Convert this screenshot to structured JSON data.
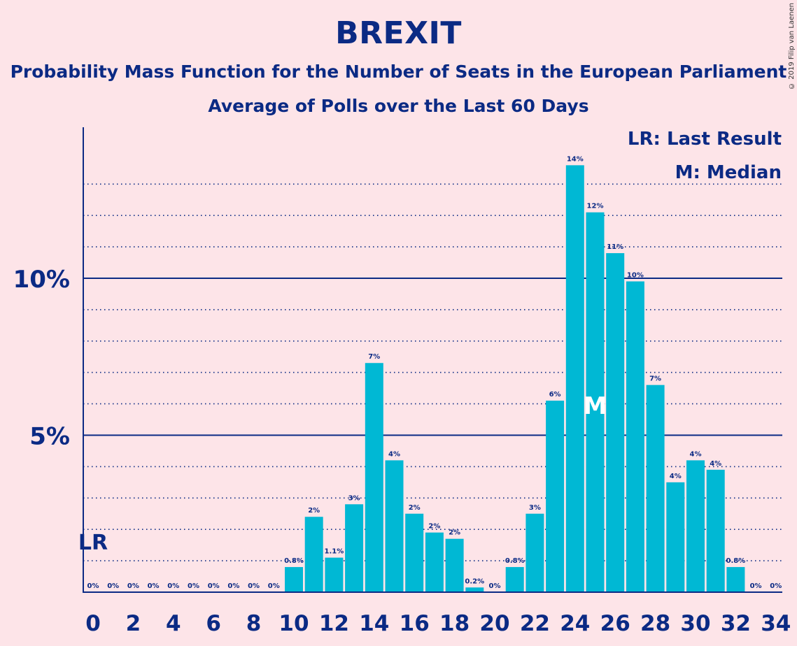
{
  "title": "BREXIT",
  "subtitle": "Probability Mass Function for the Number of Seats in the European Parliament",
  "subtitle2": "Average of Polls over the Last 60 Days",
  "copyright": "© 2019 Filip van Laenen",
  "legend": {
    "last_result": "LR: Last Result",
    "median": "M: Median"
  },
  "colors": {
    "background": "#fde4e8",
    "bar": "#00b8d4",
    "text": "#0b2a84"
  },
  "chart_data": {
    "type": "bar",
    "x": [
      0,
      1,
      2,
      3,
      4,
      5,
      6,
      7,
      8,
      9,
      10,
      11,
      12,
      13,
      14,
      15,
      16,
      17,
      18,
      19,
      20,
      21,
      22,
      23,
      24,
      25,
      26,
      27,
      28,
      29,
      30,
      31,
      32,
      33,
      34
    ],
    "values": [
      0,
      0,
      0,
      0,
      0,
      0,
      0,
      0,
      0,
      0,
      0.8,
      2.4,
      1.1,
      2.8,
      7.3,
      4.2,
      2.5,
      1.9,
      1.7,
      0.15,
      0,
      0.8,
      2.5,
      6.1,
      13.6,
      12.1,
      10.8,
      9.9,
      6.6,
      3.5,
      4.2,
      3.9,
      0.8,
      0,
      0
    ],
    "labels": [
      "0%",
      "0%",
      "0%",
      "0%",
      "0%",
      "0%",
      "0%",
      "0%",
      "0%",
      "0%",
      "0.8%",
      "2%",
      "1.1%",
      "3%",
      "7%",
      "4%",
      "2%",
      "2%",
      "2%",
      "0.2%",
      "0%",
      "0.8%",
      "3%",
      "6%",
      "14%",
      "12%",
      "11%",
      "10%",
      "7%",
      "4%",
      "4%",
      "4%",
      "0.8%",
      "0%",
      "0%"
    ],
    "x_tick_labels": [
      "0",
      "2",
      "4",
      "6",
      "8",
      "10",
      "12",
      "14",
      "16",
      "18",
      "20",
      "22",
      "24",
      "26",
      "28",
      "30",
      "32",
      "34"
    ],
    "y_tick_labels": [
      "5%",
      "10%"
    ],
    "y_ticks": [
      5,
      10
    ],
    "ylim": [
      0,
      14.8
    ],
    "grid": true,
    "last_result_seat": 0,
    "last_result_marker": "LR",
    "median_seat": 25,
    "median_marker": "M"
  }
}
